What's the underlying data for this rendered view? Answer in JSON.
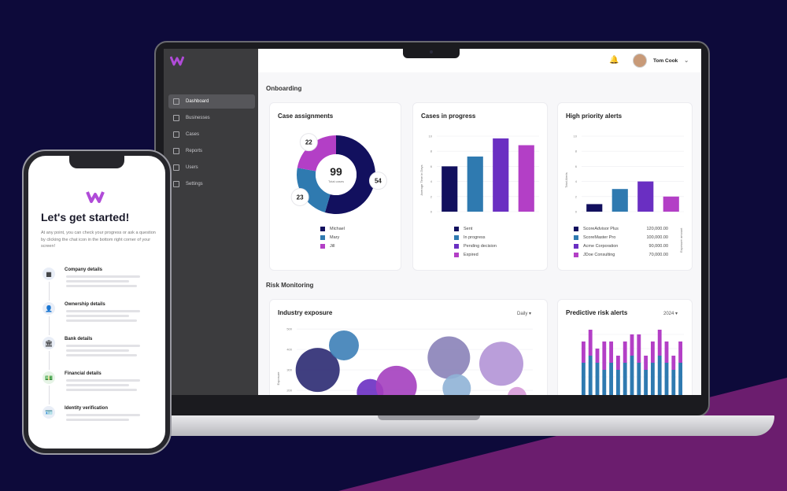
{
  "colors": {
    "background": "#0d0a3a",
    "band": "#6b1d6e",
    "navy": "#12105e",
    "blue": "#2f7ab0",
    "purple": "#6a2fc2",
    "magenta": "#b33fc6"
  },
  "dashboard": {
    "brand_icon": "logo-w-icon",
    "nav": [
      {
        "label": "Dashboard",
        "icon": "grid-icon",
        "active": true
      },
      {
        "label": "Businesses",
        "icon": "building-icon",
        "active": false
      },
      {
        "label": "Cases",
        "icon": "case-icon",
        "active": false
      },
      {
        "label": "Reports",
        "icon": "report-icon",
        "active": false
      },
      {
        "label": "Users",
        "icon": "users-icon",
        "active": false
      },
      {
        "label": "Settings",
        "icon": "gear-icon",
        "active": false
      }
    ],
    "user_name": "Tom Cook",
    "section_onboarding": "Onboarding",
    "section_risk": "Risk Monitoring",
    "case_assignments": {
      "title": "Case assignments",
      "total": "99",
      "total_label": "Total cases",
      "legend": [
        "Michael",
        "Mary",
        "Jill"
      ]
    },
    "cases_in_progress": {
      "title": "Cases in progress",
      "ylabel": "Average Time in Days",
      "legend": [
        "Sent",
        "In progress",
        "Pending decision",
        "Expired"
      ]
    },
    "high_priority": {
      "title": "High priority alerts",
      "ylabel": "Total Alerts",
      "right_label": "Exposure amount",
      "legend": [
        {
          "name": "ScoreAdvisor Plus",
          "value": "120,000.00"
        },
        {
          "name": "ScoreMaster Pro",
          "value": "100,000.00"
        },
        {
          "name": "Acme Corporation",
          "value": "90,000.00"
        },
        {
          "name": "JDoe Consulting",
          "value": "70,000.00"
        }
      ]
    },
    "industry_exposure": {
      "title": "Industry exposure",
      "dropdown": "Daily",
      "ylabel": "Exposure"
    },
    "predictive": {
      "title": "Predictive risk alerts",
      "dropdown": "2024"
    }
  },
  "chart_data": [
    {
      "type": "pie",
      "title": "Case assignments",
      "categories": [
        "Michael",
        "Mary",
        "Jill"
      ],
      "values": [
        54,
        23,
        22
      ]
    },
    {
      "type": "bar",
      "title": "Cases in progress",
      "ylabel": "Average Time in Days",
      "categories": [
        "Sent",
        "In progress",
        "Pending decision",
        "Expired"
      ],
      "values": [
        6,
        7.3,
        9.7,
        8.8
      ],
      "ylim": [
        0,
        10
      ],
      "yticks": [
        "0",
        "2",
        "4",
        "6",
        "8",
        "10"
      ]
    },
    {
      "type": "bar",
      "title": "High priority alerts",
      "ylabel": "Total Alerts",
      "categories": [
        "ScoreAdvisor Plus",
        "ScoreMaster Pro",
        "Acme Corporation",
        "JDoe Consulting"
      ],
      "values": [
        1,
        3,
        4,
        2
      ],
      "ylim": [
        0,
        10
      ],
      "yticks": [
        "0",
        "2",
        "4",
        "6",
        "8",
        "10"
      ]
    },
    {
      "type": "scatter",
      "title": "Industry exposure",
      "yticks": [
        "200",
        "300",
        "400",
        "500"
      ],
      "points": [
        {
          "x": 1,
          "y": 300,
          "r": 28,
          "color": "#2b2a72"
        },
        {
          "x": 2,
          "y": 420,
          "r": 19,
          "color": "#3d7fb7"
        },
        {
          "x": 3,
          "y": 190,
          "r": 17,
          "color": "#6a2fc2"
        },
        {
          "x": 4,
          "y": 220,
          "r": 26,
          "color": "#a43fbf"
        },
        {
          "x": 6,
          "y": 360,
          "r": 27,
          "color": "#8a82b8"
        },
        {
          "x": 6.3,
          "y": 210,
          "r": 18,
          "color": "#8fb2d6"
        },
        {
          "x": 8,
          "y": 330,
          "r": 28,
          "color": "#b294d6"
        },
        {
          "x": 8.6,
          "y": 170,
          "r": 12,
          "color": "#d79ad8"
        }
      ]
    },
    {
      "type": "bar",
      "title": "Predictive risk alerts",
      "series": [
        {
          "name": "",
          "values": [
            6,
            7,
            6,
            5,
            6,
            5,
            6,
            7,
            6,
            5,
            6,
            7,
            6,
            5,
            6
          ]
        },
        {
          "name": "",
          "values": [
            3,
            4,
            2,
            4,
            3,
            2,
            3,
            3,
            4,
            2,
            3,
            4,
            3,
            2,
            3
          ]
        }
      ]
    }
  ],
  "phone": {
    "title": "Let's get started!",
    "description": "At any point, you can check your progress or ask a question by clicking the chat icon in the bottom right corner of your screen!",
    "steps": [
      {
        "label": "Company details",
        "icon": "building-icon"
      },
      {
        "label": "Ownership details",
        "icon": "person-icon"
      },
      {
        "label": "Bank details",
        "icon": "bank-icon"
      },
      {
        "label": "Financial details",
        "icon": "money-icon"
      },
      {
        "label": "Identity verification",
        "icon": "id-icon"
      }
    ]
  }
}
